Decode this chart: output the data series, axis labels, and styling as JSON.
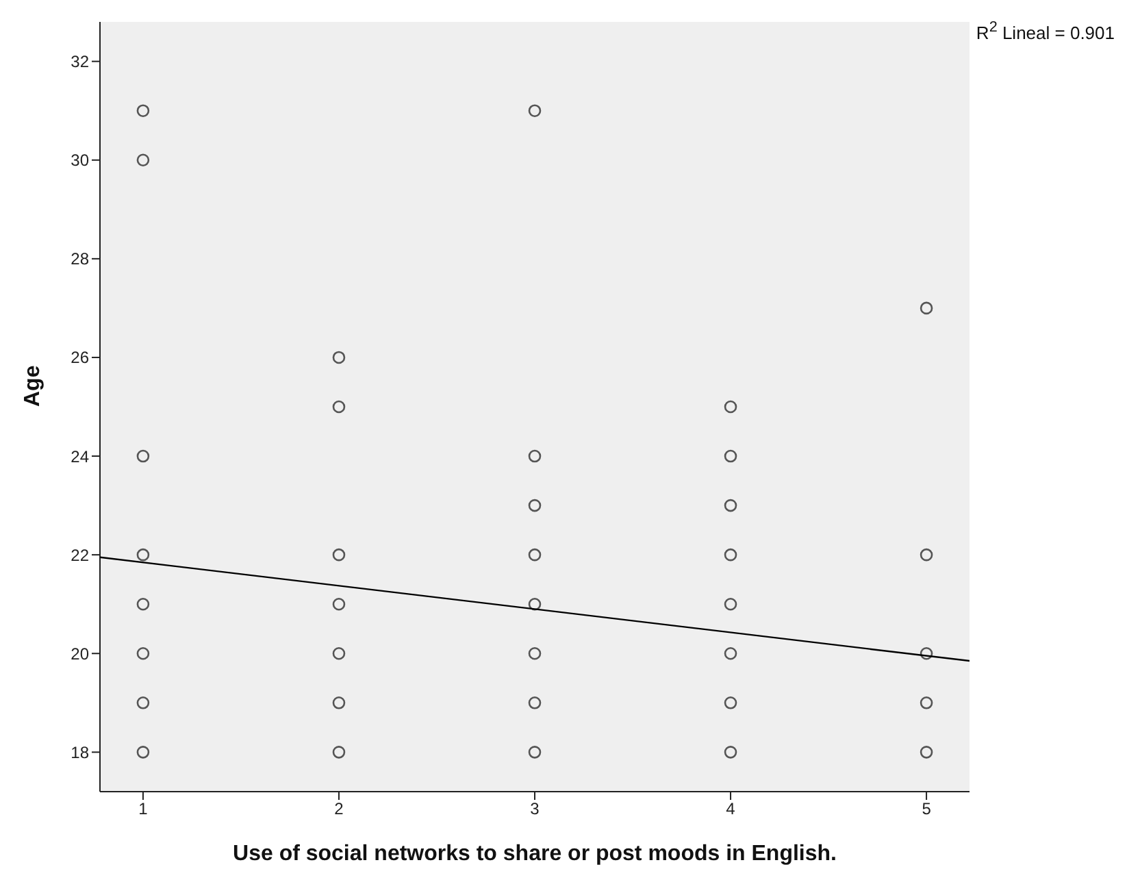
{
  "chart_data": {
    "type": "scatter",
    "xlabel": "Use of social networks to share or post moods in English.",
    "ylabel": "Age",
    "annotations": [
      "R$^{2}$ Lineal = 0.901"
    ],
    "xlim": [
      0.78,
      5.22
    ],
    "xticks": [
      1,
      2,
      3,
      4,
      5
    ],
    "ylim": [
      17.2,
      32.8
    ],
    "yticks": [
      18,
      20,
      22,
      24,
      26,
      28,
      30,
      32
    ],
    "grid": false,
    "legend": false,
    "marker": "circle",
    "series": [
      {
        "color": "#555555",
        "x": [
          1,
          1,
          1,
          1,
          1,
          1,
          1,
          1,
          2,
          2,
          2,
          2,
          2,
          2,
          2,
          3,
          3,
          3,
          3,
          3,
          3,
          3,
          3,
          4,
          4,
          4,
          4,
          4,
          4,
          4,
          4,
          5,
          5,
          5,
          5,
          5
        ],
        "values": [
          31,
          30,
          24,
          22,
          21,
          20,
          19,
          18,
          26,
          25,
          22,
          21,
          20,
          19,
          18,
          31,
          24,
          23,
          22,
          21,
          20,
          19,
          18,
          25,
          24,
          23,
          22,
          21,
          20,
          19,
          18,
          27,
          22,
          20,
          19,
          18
        ]
      },
      {
        "type": "line",
        "color": "#000000",
        "marker": "none",
        "x": [
          0.78,
          5.22
        ],
        "values": [
          21.95,
          19.85
        ]
      }
    ]
  }
}
